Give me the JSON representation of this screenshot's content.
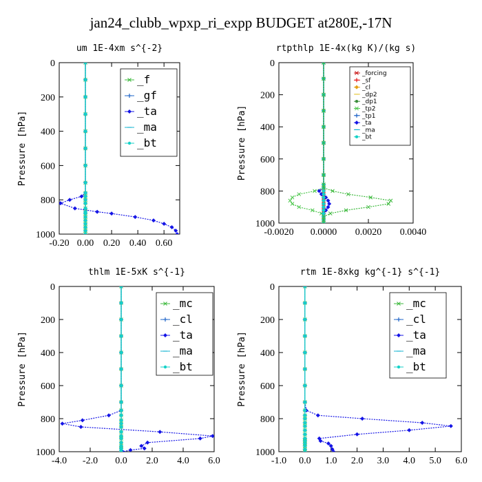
{
  "figure": {
    "title": "jan24_clubb_wpxp_ri_expp  BUDGET at280E,-17N"
  },
  "chart_data": [
    {
      "type": "line",
      "title": "um   1E-4xm s^{-2}",
      "ylabel": "Pressure [hPa]",
      "xlim": [
        -0.2,
        0.72
      ],
      "ylim": [
        1000,
        0
      ],
      "xticks": [
        -0.2,
        0.0,
        0.2,
        0.4,
        0.6
      ],
      "xtick_labels": [
        "-0.20",
        "0.00",
        "0.20",
        "0.40",
        "0.60"
      ],
      "yticks": [
        0,
        200,
        400,
        600,
        800,
        1000
      ],
      "ytick_labels": [
        "0",
        "200",
        "400",
        "600",
        "800",
        "1000"
      ],
      "grid": false,
      "legend_position": "top-right",
      "legend_style": "large",
      "y": [
        0,
        100,
        200,
        300,
        400,
        500,
        600,
        700,
        760,
        780,
        800,
        820,
        850,
        870,
        880,
        900,
        920,
        940,
        960,
        980,
        1000
      ],
      "series": [
        {
          "name": "_f",
          "color": "#3cb93c",
          "values": [
            0,
            0,
            0,
            0,
            0,
            0,
            0,
            0,
            0,
            0,
            0,
            0,
            0,
            0,
            0,
            0,
            0,
            0,
            0,
            0,
            0
          ]
        },
        {
          "name": "_gf",
          "color": "#1e64c8",
          "values": [
            0,
            0,
            0,
            0,
            0,
            0,
            0,
            0,
            0,
            0,
            0,
            0,
            0,
            0,
            0,
            0,
            0,
            0,
            0,
            0,
            0
          ]
        },
        {
          "name": "_ta",
          "color": "#1414e6",
          "values": [
            0,
            0,
            0,
            0,
            0,
            0,
            0,
            0,
            0,
            -0.03,
            -0.12,
            -0.19,
            -0.08,
            0.09,
            0.2,
            0.38,
            0.52,
            0.6,
            0.66,
            0.69,
            0.7
          ]
        },
        {
          "name": "_ma",
          "color": "#14b4d2",
          "values": [
            0,
            0,
            0,
            0,
            0,
            0,
            0,
            0,
            0,
            0,
            0,
            0,
            0,
            0,
            0,
            0,
            0,
            0,
            0,
            0,
            0
          ]
        },
        {
          "name": "_bt",
          "color": "#14d2c8",
          "values": [
            0,
            0,
            0,
            0,
            0,
            0,
            0,
            0,
            0,
            0,
            0,
            0,
            0,
            0,
            0,
            0,
            0,
            0,
            0,
            0,
            0
          ]
        }
      ]
    },
    {
      "type": "line",
      "title": "rtpthlp   1E-4x(kg K)/(kg s)",
      "ylabel": "Pressure [hPa]",
      "xlim": [
        -0.002,
        0.004
      ],
      "ylim": [
        1000,
        0
      ],
      "xticks": [
        -0.002,
        0.0,
        0.002,
        0.004
      ],
      "xtick_labels": [
        "-0.0020",
        "0.0000",
        "0.0020",
        "0.0040"
      ],
      "yticks": [
        0,
        200,
        400,
        600,
        800,
        1000
      ],
      "ytick_labels": [
        "0",
        "200",
        "400",
        "600",
        "800",
        "1000"
      ],
      "grid": false,
      "legend_position": "top-right",
      "legend_style": "small",
      "y": [
        0,
        100,
        200,
        300,
        400,
        500,
        600,
        700,
        760,
        780,
        800,
        820,
        840,
        860,
        880,
        900,
        920,
        940,
        960,
        980,
        1000
      ],
      "series": [
        {
          "name": "_forcing",
          "color": "#c81414",
          "values": [
            0,
            0,
            0,
            0,
            0,
            0,
            0,
            0,
            0,
            0,
            0,
            0,
            0,
            0,
            0,
            0,
            0,
            0,
            0,
            0,
            0
          ]
        },
        {
          "name": "_sf",
          "color": "#e61414",
          "values": [
            0,
            0,
            0,
            0,
            0,
            0,
            0,
            0,
            0,
            0,
            0,
            0,
            0,
            0,
            0,
            0,
            0,
            0,
            0,
            0,
            0
          ]
        },
        {
          "name": "_cl",
          "color": "#e6a014",
          "values": [
            0,
            0,
            0,
            0,
            0,
            0,
            0,
            0,
            0,
            0,
            0,
            0,
            0,
            0,
            0,
            0,
            0,
            0,
            0,
            0,
            0
          ]
        },
        {
          "name": "_dp2",
          "color": "#e6c83c",
          "values": [
            0,
            0,
            0,
            0,
            0,
            0,
            0,
            0,
            0,
            0,
            0,
            0,
            0,
            0,
            0,
            0,
            0,
            0,
            0,
            0,
            0
          ]
        },
        {
          "name": "_dp1",
          "color": "#3c8c3c",
          "values": [
            0,
            0,
            0,
            0,
            0,
            0,
            0,
            0,
            0,
            0,
            0,
            0,
            0,
            0,
            0,
            0,
            0,
            0,
            0,
            0,
            0
          ]
        },
        {
          "name": "_tp2",
          "color": "#50c850",
          "values": [
            0,
            0,
            0,
            0,
            0,
            0,
            0,
            0,
            0,
            0,
            -0.0004,
            -0.0011,
            -0.0014,
            -0.0015,
            -0.0014,
            -0.0011,
            -0.0005,
            -0.0001,
            0,
            0,
            0
          ]
        },
        {
          "name": "_tp1",
          "color": "#1e64c8",
          "values": [
            0,
            0,
            0,
            0,
            0,
            0,
            0,
            0,
            0,
            0,
            0,
            0,
            0,
            0,
            0,
            0,
            0,
            0,
            0,
            0,
            0
          ]
        },
        {
          "name": "_ta",
          "color": "#1414e6",
          "values": [
            0,
            0,
            0,
            0,
            0,
            0,
            0,
            0,
            0,
            0,
            -0.0002,
            -0.0001,
            0.0001,
            0.0002,
            0.00025,
            0.0002,
            0.0001,
            0,
            0,
            0,
            0
          ]
        },
        {
          "name": "_ma",
          "color": "#14b4d2",
          "values": [
            0,
            0,
            0,
            0,
            0,
            0,
            0,
            0,
            0,
            0,
            0,
            0,
            0,
            0,
            0,
            0,
            0,
            0,
            0,
            0,
            0
          ]
        },
        {
          "name": "_bt",
          "color": "#14d2c8",
          "values": [
            0,
            0,
            0,
            0,
            0,
            0,
            0,
            0,
            0,
            0,
            0,
            0,
            0,
            0,
            0,
            0,
            0,
            0,
            0,
            0,
            0
          ]
        },
        {
          "name": "",
          "color": "#3cb93c",
          "values": [
            0,
            0,
            0,
            0,
            0,
            0,
            0,
            0,
            0,
            0,
            0.0004,
            0.0011,
            0.0021,
            0.003,
            0.0029,
            0.002,
            0.001,
            0.0003,
            0,
            0,
            0
          ]
        }
      ]
    },
    {
      "type": "line",
      "title": "thlm   1E-5xK s^{-1}",
      "ylabel": "Pressure [hPa]",
      "xlim": [
        -4.0,
        6.0
      ],
      "ylim": [
        1000,
        0
      ],
      "xticks": [
        -4.0,
        -2.0,
        0.0,
        2.0,
        4.0,
        6.0
      ],
      "xtick_labels": [
        "-4.0",
        "-2.0",
        "0.0",
        "2.0",
        "4.0",
        "6.0"
      ],
      "yticks": [
        0,
        200,
        400,
        600,
        800,
        1000
      ],
      "ytick_labels": [
        "0",
        "200",
        "400",
        "600",
        "800",
        "1000"
      ],
      "grid": false,
      "legend_position": "top-right",
      "legend_style": "large",
      "y": [
        0,
        100,
        200,
        300,
        400,
        500,
        600,
        700,
        750,
        780,
        810,
        830,
        850,
        880,
        905,
        920,
        945,
        965,
        980,
        990,
        1000
      ],
      "series": [
        {
          "name": "_mc",
          "color": "#3cb93c",
          "values": [
            0,
            0,
            0,
            0,
            0,
            0,
            0,
            0,
            0,
            0,
            0,
            0,
            0,
            0,
            0,
            0,
            0,
            0,
            0,
            0,
            0
          ]
        },
        {
          "name": "_cl",
          "color": "#1e64c8",
          "values": [
            0,
            0,
            0,
            0,
            0,
            0,
            0,
            0,
            0,
            0,
            0,
            0,
            0,
            0,
            0,
            0,
            0,
            0,
            0,
            0,
            0
          ]
        },
        {
          "name": "_ta",
          "color": "#1414e6",
          "values": [
            0,
            0,
            0,
            0,
            0,
            0,
            0,
            0,
            0,
            -0.8,
            -2.5,
            -3.8,
            -2.6,
            2.5,
            5.9,
            5.1,
            1.7,
            1.3,
            1.5,
            0.6,
            0.1
          ]
        },
        {
          "name": "_ma",
          "color": "#14b4d2",
          "values": [
            0,
            0,
            0,
            0,
            0,
            0,
            0,
            0,
            0,
            0,
            0,
            0,
            0,
            0,
            0,
            0,
            0,
            0,
            0,
            0,
            0
          ]
        },
        {
          "name": "_bt",
          "color": "#14d2c8",
          "values": [
            0,
            0,
            0,
            0,
            0,
            0,
            0,
            0,
            0,
            0,
            0,
            0,
            0,
            0,
            0,
            0,
            0,
            0,
            0,
            0,
            0
          ]
        }
      ]
    },
    {
      "type": "line",
      "title": "rtm   1E-8xkg kg^{-1} s^{-1}",
      "ylabel": "Pressure [hPa]",
      "xlim": [
        -1.0,
        6.0
      ],
      "ylim": [
        1000,
        0
      ],
      "xticks": [
        -1.0,
        0.0,
        1.0,
        2.0,
        3.0,
        4.0,
        5.0,
        6.0
      ],
      "xtick_labels": [
        "-1.0",
        "0.0",
        "1.0",
        "2.0",
        "3.0",
        "4.0",
        "5.0",
        "6.0"
      ],
      "yticks": [
        0,
        200,
        400,
        600,
        800,
        1000
      ],
      "ytick_labels": [
        "0",
        "200",
        "400",
        "600",
        "800",
        "1000"
      ],
      "grid": false,
      "legend_position": "top-right",
      "legend_style": "large",
      "y": [
        0,
        100,
        200,
        300,
        400,
        500,
        600,
        700,
        750,
        780,
        800,
        825,
        845,
        870,
        895,
        920,
        935,
        950,
        965,
        985,
        1000
      ],
      "series": [
        {
          "name": "_mc",
          "color": "#3cb93c",
          "values": [
            0,
            0,
            0,
            0,
            0,
            0,
            0,
            0,
            0,
            0,
            0,
            0,
            0,
            0,
            0,
            0,
            0,
            0,
            0,
            0,
            0
          ]
        },
        {
          "name": "_cl",
          "color": "#1e64c8",
          "values": [
            0,
            0,
            0,
            0,
            0,
            0,
            0,
            0,
            0,
            0,
            0,
            0,
            0,
            0,
            0,
            0,
            0,
            0,
            0,
            0,
            0
          ]
        },
        {
          "name": "_ta",
          "color": "#1414e6",
          "values": [
            0,
            0,
            0,
            0,
            0,
            0,
            0,
            0,
            0.05,
            0.5,
            2.2,
            4.5,
            5.6,
            4.0,
            2.0,
            0.55,
            0.6,
            0.9,
            1.0,
            1.05,
            1.1
          ]
        },
        {
          "name": "_ma",
          "color": "#14b4d2",
          "values": [
            0,
            0,
            0,
            0,
            0,
            0,
            0,
            0,
            0,
            0,
            0,
            0,
            0,
            0,
            0,
            0,
            0,
            0,
            0,
            0,
            0
          ]
        },
        {
          "name": "_bt",
          "color": "#14d2c8",
          "values": [
            0,
            0,
            0,
            0,
            0,
            0,
            0,
            0,
            0,
            0,
            0,
            0,
            0,
            0,
            0,
            0,
            0,
            0,
            0,
            0,
            0
          ]
        }
      ]
    }
  ]
}
